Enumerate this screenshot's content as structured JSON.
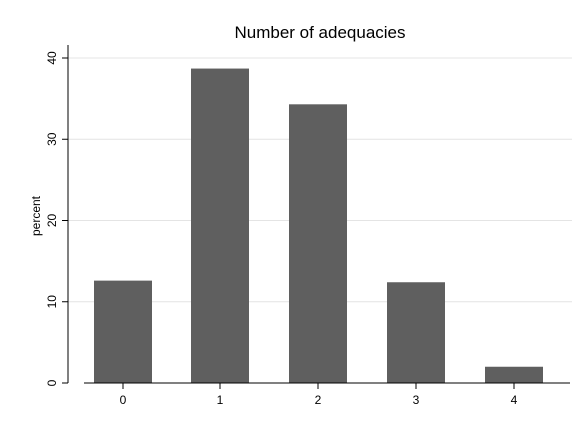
{
  "chart_data": {
    "type": "bar",
    "title": "Number of adequacies",
    "xlabel": "",
    "ylabel": "percent",
    "categories": [
      "0",
      "1",
      "2",
      "3",
      "4"
    ],
    "values": [
      12.6,
      38.7,
      34.3,
      12.4,
      2.0
    ],
    "ylim": [
      0,
      40
    ],
    "yticks": [
      0,
      10,
      20,
      30,
      40
    ],
    "grid": true,
    "bar_color": "#5f5f5f",
    "background_color": "#ffffff"
  }
}
